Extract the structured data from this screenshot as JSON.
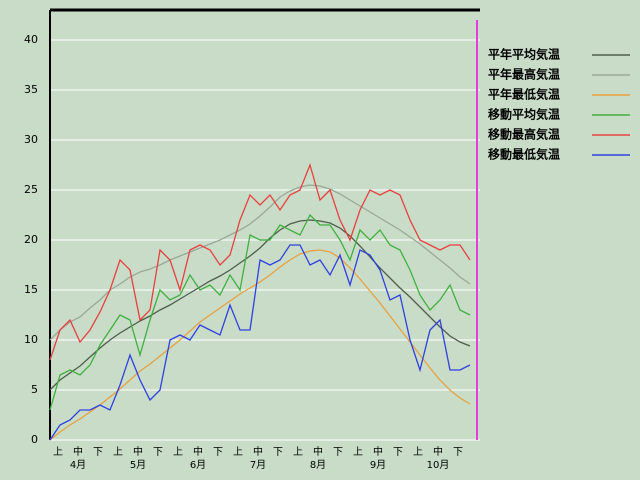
{
  "chart_data": {
    "type": "line",
    "x_ticks": [
      "上",
      "中",
      "下",
      "上",
      "中",
      "下",
      "上",
      "中",
      "下",
      "上",
      "中",
      "下",
      "上",
      "中",
      "下",
      "上",
      "中",
      "下",
      "上",
      "中",
      "下"
    ],
    "months": [
      "4月",
      "5月",
      "6月",
      "7月",
      "8月",
      "9月",
      "10月"
    ],
    "ylim": [
      0,
      43
    ],
    "yticks": [
      0,
      5,
      10,
      15,
      20,
      25,
      30,
      35,
      40
    ],
    "grid": true,
    "series": [
      {
        "name": "平年平均気温",
        "color": "#4e5e4c",
        "values": [
          5,
          6,
          6.7,
          7.4,
          8.3,
          9.2,
          10,
          10.7,
          11.3,
          11.9,
          12.4,
          13,
          13.5,
          14.1,
          14.7,
          15.3,
          15.9,
          16.4,
          17,
          17.7,
          18.4,
          19.2,
          20.2,
          21,
          21.6,
          21.9,
          22,
          21.9,
          21.7,
          21.2,
          20.4,
          19.4,
          18.3,
          17.2,
          16.2,
          15.2,
          14.3,
          13.3,
          12.3,
          11.3,
          10.4,
          9.8,
          9.4
        ]
      },
      {
        "name": "平年最高気温",
        "color": "#9aa898",
        "values": [
          10,
          11,
          11.8,
          12.3,
          13.2,
          14,
          15,
          15.6,
          16.3,
          16.8,
          17.1,
          17.5,
          18,
          18.4,
          18.8,
          19.2,
          19.6,
          20,
          20.5,
          21,
          21.6,
          22.4,
          23.3,
          24.3,
          24.9,
          25.3,
          25.5,
          25.4,
          25.1,
          24.6,
          24,
          23.4,
          22.8,
          22.2,
          21.6,
          21,
          20.3,
          19.6,
          18.8,
          18,
          17.2,
          16.3,
          15.6
        ]
      },
      {
        "name": "平年最低気温",
        "color": "#e8a040",
        "values": [
          0,
          0.8,
          1.5,
          2.1,
          2.8,
          3.5,
          4.3,
          5.1,
          6,
          6.9,
          7.6,
          8.4,
          9.2,
          10,
          10.9,
          11.8,
          12.5,
          13.2,
          13.9,
          14.6,
          15.2,
          15.8,
          16.5,
          17.3,
          18,
          18.6,
          18.9,
          19,
          18.8,
          18.2,
          17.2,
          16.1,
          14.9,
          13.7,
          12.4,
          11.1,
          9.8,
          8.5,
          7.2,
          6,
          5,
          4.2,
          3.6
        ]
      },
      {
        "name": "移動平均気温",
        "color": "#40b040",
        "values": [
          3,
          6.5,
          7,
          6.5,
          7.5,
          9.5,
          11,
          12.5,
          12,
          8.5,
          12,
          15,
          14,
          14.5,
          16.5,
          15,
          15.5,
          14.5,
          16.5,
          15,
          20.5,
          20,
          20,
          21.5,
          21,
          20.5,
          22.5,
          21.5,
          21.5,
          20,
          18,
          21,
          20,
          21,
          19.5,
          19,
          17,
          14.5,
          13,
          14,
          15.5,
          13,
          12.5
        ]
      },
      {
        "name": "移動最高気温",
        "color": "#e84040",
        "values": [
          8,
          11,
          12,
          9.8,
          11,
          12.8,
          15,
          18,
          17,
          12,
          13,
          19,
          18,
          15,
          19,
          19.5,
          19,
          17.5,
          18.5,
          22,
          24.5,
          23.5,
          24.5,
          23,
          24.5,
          25,
          27.5,
          24,
          25,
          22,
          20,
          23,
          25,
          24.5,
          25,
          24.5,
          22,
          20,
          19.5,
          19,
          19.5,
          19.5,
          18
        ]
      },
      {
        "name": "移動最低気温",
        "color": "#3040e0",
        "values": [
          0,
          1.5,
          2,
          3,
          3,
          3.5,
          3,
          5.5,
          8.5,
          6,
          4,
          5,
          10,
          10.5,
          10,
          11.5,
          11,
          10.5,
          13.5,
          11,
          11,
          18,
          17.5,
          18,
          19.5,
          19.5,
          17.5,
          18,
          16.5,
          18.5,
          15.5,
          19,
          18.5,
          17,
          14,
          14.5,
          10,
          7,
          11,
          12,
          7,
          7,
          7.5
        ]
      }
    ]
  }
}
